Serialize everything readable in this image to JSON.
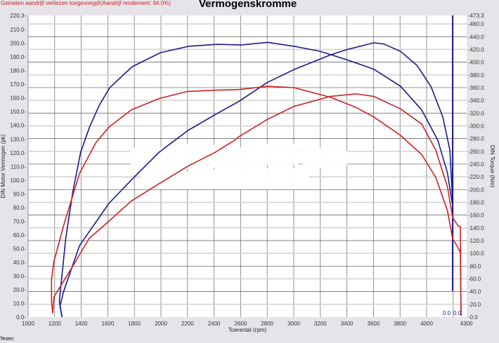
{
  "header": {
    "note": "Gemeten aandrijf verliezen toegevoegd!(Aandrijf rendement: 94.0%)",
    "title": "Vermogenskromme"
  },
  "footer": {
    "tester_label": "Tester:"
  },
  "chart_data": {
    "type": "line",
    "title": "Vermogenskromme",
    "xlabel": "Toerental (rpm)",
    "ylabel_left": "DIN Motor Vermogen (pk)",
    "ylabel_right": "DIN Torque (Nm)",
    "xlim": [
      1000,
      4300
    ],
    "ylim_left": [
      0,
      220.3
    ],
    "ylim_right": [
      0,
      473.3
    ],
    "x_ticks": [
      "1000",
      "1200",
      "1400",
      "1600",
      "1800",
      "2000",
      "2200",
      "2400",
      "2600",
      "2800",
      "3000",
      "3200",
      "3400",
      "3600",
      "3800",
      "4000",
      "4300"
    ],
    "grid": true,
    "legend": "none",
    "colors": {
      "blue": "#1a1a8c",
      "red": "#cc2222"
    },
    "series": [
      {
        "axis": "right",
        "color": "#1a1a8c",
        "points": [
          [
            1255,
            0
          ],
          [
            1235,
            25
          ],
          [
            1283,
            123
          ],
          [
            1337,
            197
          ],
          [
            1396,
            259
          ],
          [
            1464,
            299
          ],
          [
            1535,
            332
          ],
          [
            1615,
            360
          ],
          [
            1784,
            393
          ],
          [
            1998,
            415
          ],
          [
            2212,
            425
          ],
          [
            2426,
            428
          ],
          [
            2604,
            427
          ],
          [
            2803,
            431
          ],
          [
            3000,
            425
          ],
          [
            3198,
            417
          ],
          [
            3397,
            404
          ],
          [
            3602,
            389
          ],
          [
            3804,
            362
          ],
          [
            3963,
            325
          ],
          [
            4085,
            277
          ],
          [
            4157,
            226
          ],
          [
            4196,
            175
          ]
        ]
      },
      {
        "axis": "left",
        "color": "#1a1a8c",
        "points": [
          [
            1255,
            0
          ],
          [
            1240,
            8
          ],
          [
            1265,
            18.1
          ],
          [
            1388,
            52.3
          ],
          [
            1608,
            83
          ],
          [
            1776,
            100
          ],
          [
            1988,
            120.5
          ],
          [
            2199,
            136
          ],
          [
            2411,
            148
          ],
          [
            2587,
            157.5
          ],
          [
            2803,
            171.5
          ],
          [
            3000,
            180.7
          ],
          [
            3275,
            191.4
          ],
          [
            3398,
            195.3
          ],
          [
            3602,
            200.3
          ],
          [
            3680,
            199.4
          ],
          [
            3804,
            194
          ],
          [
            3928,
            183.7
          ],
          [
            4033,
            168.4
          ],
          [
            4122,
            146
          ],
          [
            4175,
            122
          ],
          [
            4196,
            84.7
          ],
          [
            4196,
            45.6
          ]
        ]
      },
      {
        "axis": "right",
        "color": "#cc2222",
        "points": [
          [
            1185,
            6
          ],
          [
            1176,
            24
          ],
          [
            1176,
            59
          ],
          [
            1194,
            87
          ],
          [
            1265,
            142
          ],
          [
            1388,
            226
          ],
          [
            1511,
            274
          ],
          [
            1608,
            298
          ],
          [
            1776,
            325
          ],
          [
            1988,
            343
          ],
          [
            2199,
            354
          ],
          [
            2411,
            356
          ],
          [
            2587,
            357
          ],
          [
            2803,
            362
          ],
          [
            3000,
            360
          ],
          [
            3275,
            345
          ],
          [
            3469,
            329
          ],
          [
            3602,
            314
          ],
          [
            3804,
            285
          ],
          [
            3963,
            255
          ],
          [
            4069,
            219
          ],
          [
            4157,
            167
          ],
          [
            4196,
            123
          ],
          [
            4228,
            112
          ],
          [
            4254,
            101
          ],
          [
            4259,
            2
          ]
        ]
      },
      {
        "axis": "left",
        "color": "#cc2222",
        "points": [
          [
            1185,
            2.7
          ],
          [
            1194,
            14.7
          ],
          [
            1335,
            36.9
          ],
          [
            1459,
            57.4
          ],
          [
            1608,
            70
          ],
          [
            1776,
            84.7
          ],
          [
            1988,
            97.5
          ],
          [
            2199,
            110
          ],
          [
            2411,
            120.5
          ],
          [
            2552,
            129
          ],
          [
            2587,
            131.7
          ],
          [
            2803,
            144.5
          ],
          [
            3000,
            153.8
          ],
          [
            3275,
            161.2
          ],
          [
            3469,
            163
          ],
          [
            3602,
            161.2
          ],
          [
            3804,
            152
          ],
          [
            3963,
            141
          ],
          [
            4069,
            122
          ],
          [
            4157,
            95
          ],
          [
            4196,
            72.7
          ],
          [
            4236,
            66.7
          ],
          [
            4254,
            66
          ],
          [
            4259,
            1
          ]
        ]
      }
    ],
    "marker_rpm": 4196,
    "end_labels": [
      "0.0",
      "0.0"
    ]
  }
}
